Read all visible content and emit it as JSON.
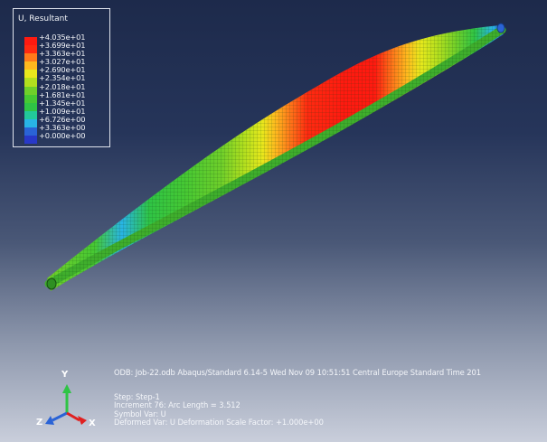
{
  "legend": {
    "title": "U, Resultant",
    "entries": [
      {
        "value": "+4.035e+01",
        "color": "#ff1a10"
      },
      {
        "value": "+3.699e+01",
        "color": "#ff2a10"
      },
      {
        "value": "+3.363e+01",
        "color": "#ff7a1a"
      },
      {
        "value": "+3.027e+01",
        "color": "#ffb81e"
      },
      {
        "value": "+2.690e+01",
        "color": "#e8e81c"
      },
      {
        "value": "+2.354e+01",
        "color": "#b2df1e"
      },
      {
        "value": "+2.018e+01",
        "color": "#6fcf2a"
      },
      {
        "value": "+1.681e+01",
        "color": "#46c833"
      },
      {
        "value": "+1.345e+01",
        "color": "#2fc445"
      },
      {
        "value": "+1.009e+01",
        "color": "#22c89a"
      },
      {
        "value": "+6.726e+00",
        "color": "#28b4e6"
      },
      {
        "value": "+3.363e+00",
        "color": "#2a63d6"
      },
      {
        "value": "+0.000e+00",
        "color": "#2838c8"
      }
    ]
  },
  "info": {
    "odb_line": "ODB: Job-22.odb    Abaqus/Standard 6.14-5    Wed Nov 09 10:51:51 Central Europe Standard Time 201",
    "step_line": "Step: Step-1",
    "increment_line": "Increment     76: Arc Length =     3.512",
    "symbol_line": "Symbol Var:  U",
    "deformed_line": "Deformed Var:  U   Deformation Scale Factor: +1.000e+00"
  },
  "triad": {
    "y_label": "Y",
    "z_label": "Z",
    "x_label": "X",
    "y_color": "#2fc445",
    "z_color": "#2a63d6",
    "x_color": "#e02020"
  }
}
